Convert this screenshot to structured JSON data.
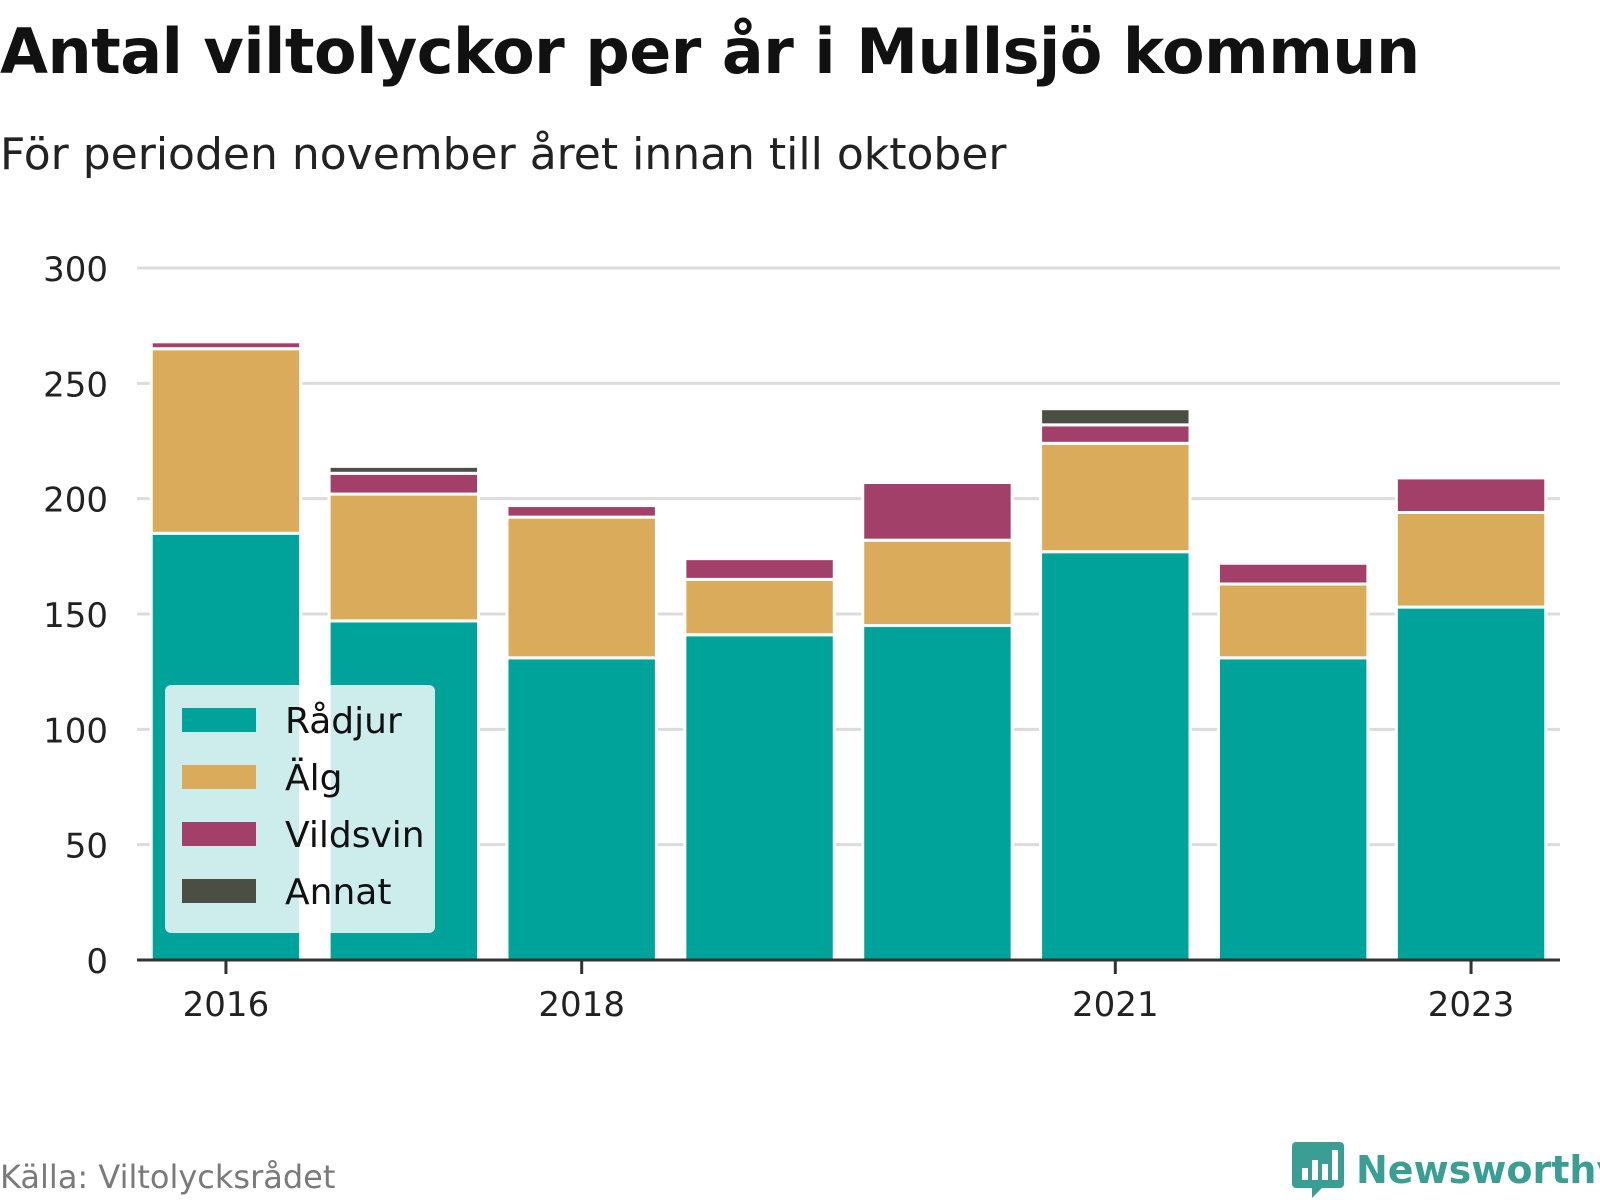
{
  "title": "Antal viltolyckor per år i Mullsjö kommun",
  "subtitle": "För perioden november året innan till oktober",
  "source": "Källa: Viltolycksrådet",
  "brand": {
    "name": "Newsworthy",
    "color": "#3a9e95",
    "icon": "newsworthy-logo-icon"
  },
  "chart_data": {
    "type": "bar",
    "stacked": true,
    "categories": [
      "2016",
      "2017",
      "2018",
      "2019",
      "2020",
      "2021",
      "2022",
      "2023"
    ],
    "x_tick_labels": [
      "2016",
      "",
      "2018",
      "",
      "",
      "2021",
      "",
      "2023"
    ],
    "series": [
      {
        "name": "Rådjur",
        "color": "#00a39a",
        "values": [
          185,
          147,
          131,
          141,
          145,
          177,
          131,
          153
        ]
      },
      {
        "name": "Älg",
        "color": "#d9ab5a",
        "values": [
          80,
          55,
          61,
          24,
          37,
          47,
          32,
          41
        ]
      },
      {
        "name": "Vildsvin",
        "color": "#a3406a",
        "values": [
          3,
          9,
          5,
          9,
          25,
          8,
          9,
          15
        ]
      },
      {
        "name": "Annat",
        "color": "#4b4e43",
        "values": [
          0,
          3,
          0,
          0,
          0,
          7,
          0,
          0
        ]
      }
    ],
    "y_ticks": [
      0,
      50,
      100,
      150,
      200,
      250,
      300
    ],
    "ylim": [
      0,
      300
    ],
    "grid": true,
    "legend_position": "bottom-left"
  }
}
